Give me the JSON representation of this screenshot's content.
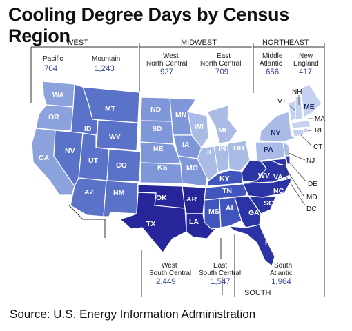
{
  "title": "Cooling Degree Days by Census Region",
  "source": "Source: U.S. Energy Information Administration",
  "colors": {
    "pacific": "#8ba2dd",
    "mountain": "#5a72c8",
    "west_north_central": "#7f96d8",
    "east_north_central": "#aabbe6",
    "middle_atlantic": "#aabbe6",
    "new_england": "#c5d2ef",
    "west_south_central": "#26269a",
    "east_south_central": "#4155bf",
    "south_atlantic": "#2b34a4",
    "value_text": "#3a4a9a"
  },
  "regions": {
    "west": "WEST",
    "midwest": "MIDWEST",
    "northeast": "NORTHEAST",
    "south": "SOUTH"
  },
  "divisions": {
    "pacific": {
      "line1": "Pacific",
      "line2": "",
      "value": "704"
    },
    "mountain": {
      "line1": "Mountain",
      "line2": "",
      "value": "1,243"
    },
    "west_north_central": {
      "line1": "West",
      "line2": "North Central",
      "value": "927"
    },
    "east_north_central": {
      "line1": "East",
      "line2": "North Central",
      "value": "709"
    },
    "middle_atlantic": {
      "line1": "Middle",
      "line2": "Atlantic",
      "value": "656"
    },
    "new_england": {
      "line1": "New",
      "line2": "England",
      "value": "417"
    },
    "west_south_central": {
      "line1": "West",
      "line2": "South Central",
      "value": "2,449"
    },
    "east_south_central": {
      "line1": "East",
      "line2": "South Central",
      "value": "1,547"
    },
    "south_atlantic": {
      "line1": "South",
      "line2": "Atlantic",
      "value": "1,964"
    }
  },
  "states": {
    "WA": "WA",
    "OR": "OR",
    "CA": "CA",
    "MT": "MT",
    "ID": "ID",
    "WY": "WY",
    "NV": "NV",
    "UT": "UT",
    "CO": "CO",
    "AZ": "AZ",
    "NM": "NM",
    "ND": "ND",
    "MN": "MN",
    "SD": "SD",
    "NE": "NE",
    "IA": "IA",
    "KS": "KS",
    "MO": "MO",
    "WI": "WI",
    "MI": "MI",
    "IL": "IL",
    "IN": "IN",
    "OH": "OH",
    "NY": "NY",
    "PA": "PA",
    "NJ": "NJ",
    "VT": "VT",
    "NH": "NH",
    "ME": "ME",
    "MA": "MA",
    "RI": "RI",
    "CT": "CT",
    "OK": "OK",
    "AR": "AR",
    "TX": "TX",
    "LA": "LA",
    "KY": "KY",
    "TN": "TN",
    "MS": "MS",
    "AL": "AL",
    "WV": "WV",
    "VA": "VA",
    "NC": "NC",
    "SC": "SC",
    "GA": "GA",
    "FL": "FL",
    "DE": "DE",
    "MD": "MD",
    "DC": "DC"
  }
}
